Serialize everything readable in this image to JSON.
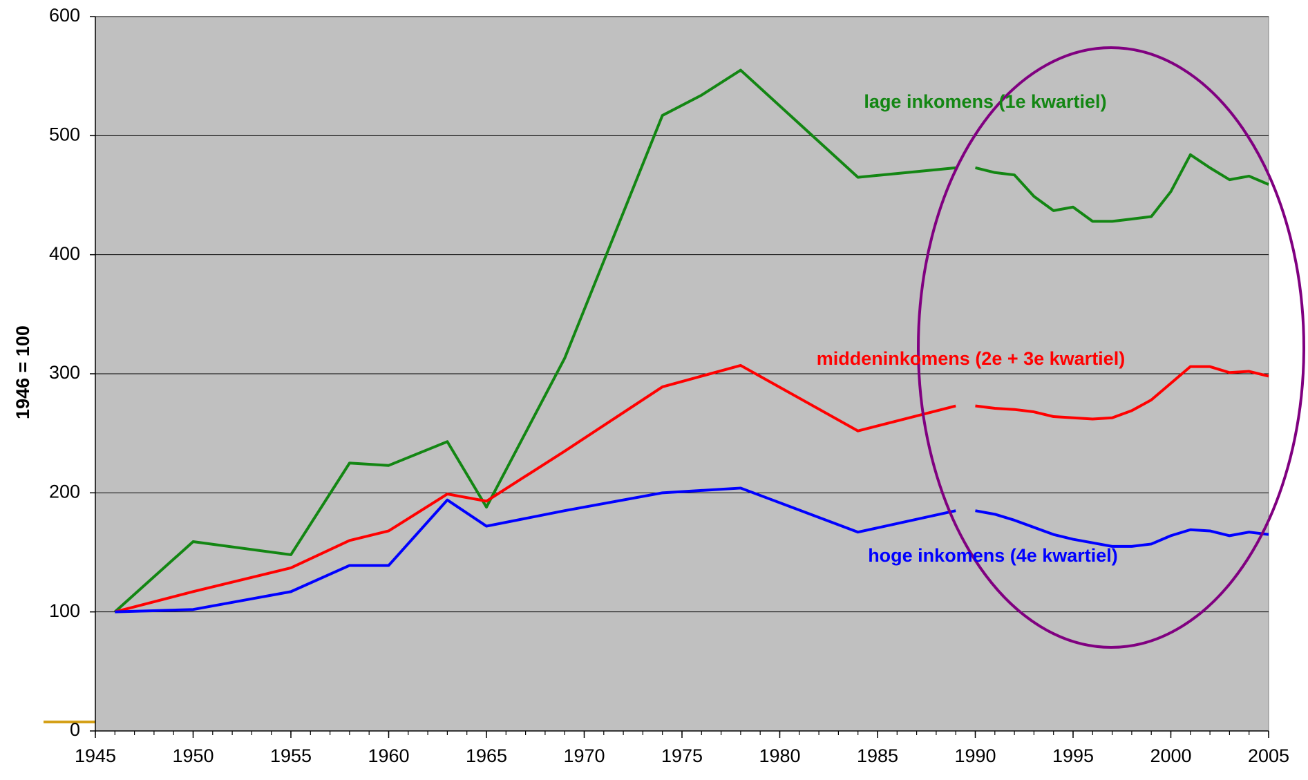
{
  "chart_data": {
    "type": "line",
    "y_label": "1946 = 100",
    "x": [
      1946,
      1950,
      1955,
      1958,
      1960,
      1963,
      1965,
      1969,
      1974,
      1976,
      1978,
      1984,
      1989,
      1989.5,
      1990,
      1991,
      1992,
      1993,
      1994,
      1995,
      1996,
      1997,
      1998,
      1999,
      2000,
      2001,
      2002,
      2003,
      2004,
      2005
    ],
    "series": [
      {
        "name": "lage inkomens (1e kwartiel)",
        "color": "#138613",
        "values": [
          100,
          159,
          148,
          225,
          223,
          243,
          188,
          313,
          517,
          534,
          555,
          465,
          473,
          null,
          473,
          469,
          467,
          449,
          437,
          440,
          428,
          428,
          430,
          432,
          453,
          484,
          473,
          463,
          466,
          459
        ]
      },
      {
        "name": "middeninkomens (2e + 3e kwartiel)",
        "color": "#ff0000",
        "values": [
          100,
          117,
          137,
          160,
          168,
          199,
          193,
          235,
          289,
          298,
          307,
          252,
          273,
          null,
          273,
          271,
          270,
          268,
          264,
          263,
          262,
          263,
          269,
          278,
          292,
          306,
          306,
          301,
          302,
          298
        ]
      },
      {
        "name": "hoge inkomens (4e kwartiel)",
        "color": "#0000ff",
        "values": [
          100,
          102,
          117,
          139,
          139,
          194,
          172,
          185,
          200,
          202,
          204,
          167,
          185,
          null,
          185,
          182,
          177,
          171,
          165,
          161,
          158,
          155,
          155,
          157,
          164,
          169,
          168,
          164,
          167,
          165
        ]
      }
    ],
    "xlim": [
      1945,
      2005
    ],
    "xticks": [
      1945,
      1950,
      1955,
      1960,
      1965,
      1970,
      1975,
      1980,
      1985,
      1990,
      1995,
      2000,
      2005
    ],
    "ylim": [
      0,
      600
    ],
    "yticks": [
      0,
      100,
      200,
      300,
      400,
      500,
      600
    ],
    "grid": true,
    "legend": "inline"
  }
}
